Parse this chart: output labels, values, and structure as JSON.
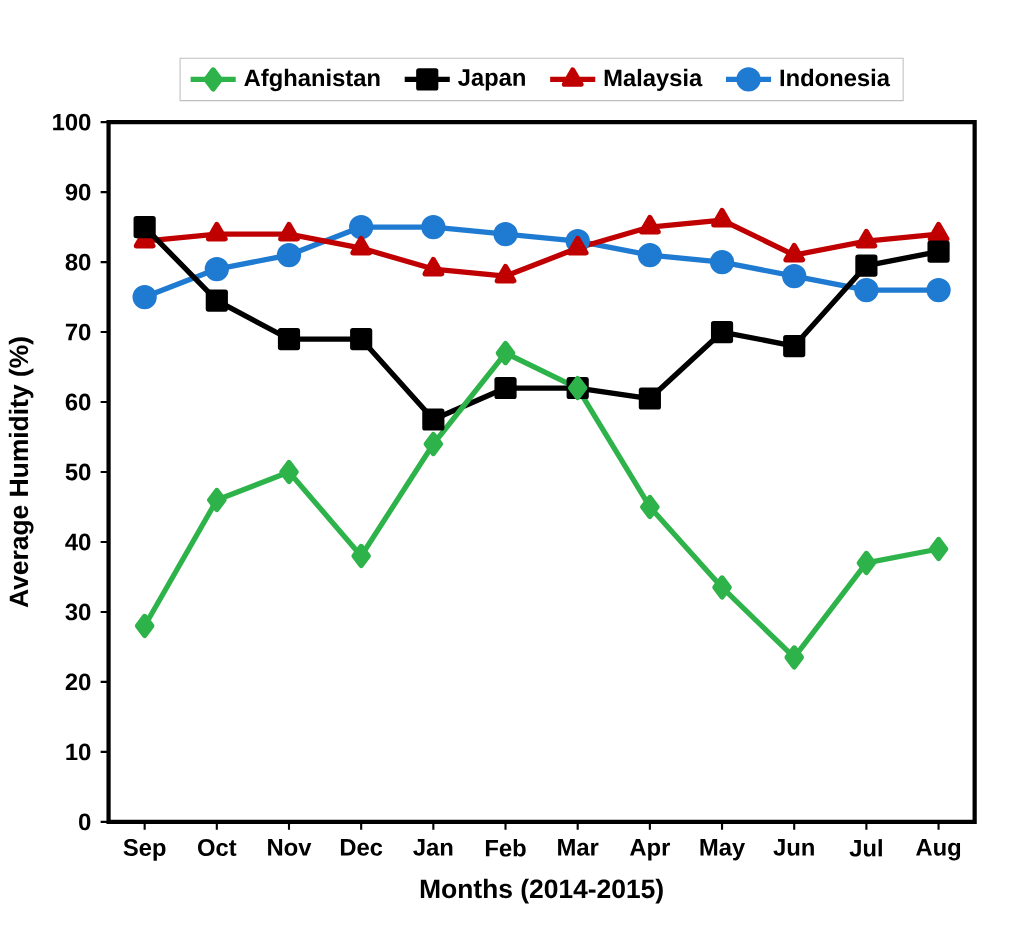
{
  "chart_data": {
    "type": "line",
    "xlabel": "Months (2014-2015)",
    "ylabel": "Average Humidity (%)",
    "categories": [
      "Sep",
      "Oct",
      "Nov",
      "Dec",
      "Jan",
      "Feb",
      "Mar",
      "Apr",
      "May",
      "Jun",
      "Jul",
      "Aug"
    ],
    "ylim": [
      0,
      100
    ],
    "yticks": [
      0,
      10,
      20,
      30,
      40,
      50,
      60,
      70,
      80,
      90,
      100
    ],
    "legend": "top",
    "grid": false,
    "line_style": "solid",
    "series": [
      {
        "name": "Afghanistan",
        "color": "#2db34a",
        "marker": "diamond",
        "values": [
          28,
          46,
          50,
          38,
          54,
          67,
          62,
          45,
          33.5,
          23.5,
          37,
          39
        ]
      },
      {
        "name": "Japan",
        "color": "#000000",
        "marker": "square",
        "values": [
          85,
          74.5,
          69,
          69,
          57.5,
          62,
          62,
          60.5,
          70,
          68,
          79.5,
          81.5
        ]
      },
      {
        "name": "Malaysia",
        "color": "#c00000",
        "marker": "triangle",
        "values": [
          83,
          84,
          84,
          82,
          79,
          78,
          82,
          85,
          86,
          81,
          83,
          84
        ]
      },
      {
        "name": "Indonesia",
        "color": "#1f7ad1",
        "marker": "circle",
        "values": [
          75,
          79,
          81,
          85,
          85,
          84,
          83,
          81,
          80,
          78,
          76,
          76
        ]
      }
    ]
  }
}
